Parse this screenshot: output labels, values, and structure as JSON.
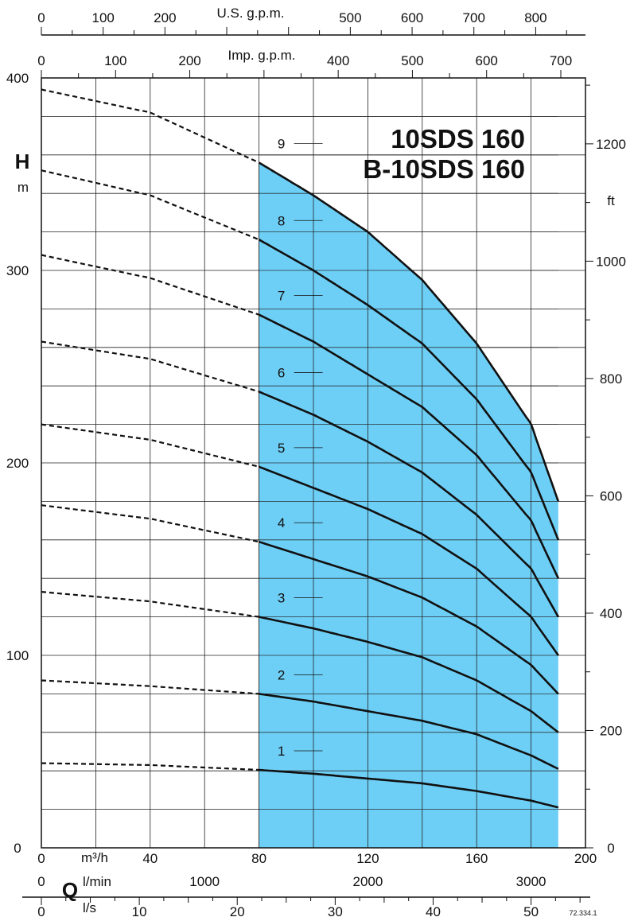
{
  "chart_data": {
    "type": "line",
    "title_lines": [
      "10SDS 160",
      "B-10SDS 160"
    ],
    "y_symbol": "H",
    "y_unit": "m",
    "y_right_unit": "ft",
    "x_symbol": "Q",
    "x_unit_m3h": "m³/h",
    "x_unit_lmin": "l/min",
    "x_unit_ls": "l/s",
    "top_axis_us_label": "U.S. g.p.m.",
    "top_axis_imp_label": "Imp. g.p.m.",
    "footnote": "72.334.1",
    "xlim": [
      0,
      200
    ],
    "ylim": [
      0,
      400
    ],
    "x_ticks": [
      "0",
      "40",
      "80",
      "120",
      "160",
      "200"
    ],
    "y_ticks": [
      "0",
      "100",
      "200",
      "300",
      "400"
    ],
    "y_right_ticks": [
      "0",
      "200",
      "400",
      "600",
      "800",
      "1000",
      "1200"
    ],
    "lmin_ticks": [
      "0",
      "1000",
      "2000",
      "3000"
    ],
    "ls_ticks": [
      "0",
      "10",
      "20",
      "30",
      "40",
      "50"
    ],
    "us_gpm_ticks": [
      "0",
      "100",
      "200",
      "500",
      "600",
      "700",
      "800"
    ],
    "imp_gpm_ticks": [
      "0",
      "100",
      "200",
      "400",
      "500",
      "600",
      "700"
    ],
    "operating_range": [
      80,
      190
    ],
    "fill_color": "#6ecff6",
    "series": [
      {
        "name": "1",
        "x": [
          0,
          40,
          80,
          100,
          120,
          140,
          160,
          180,
          190
        ],
        "y": [
          44,
          43,
          40.5,
          38.5,
          36,
          33.5,
          29.5,
          24.5,
          21
        ]
      },
      {
        "name": "2",
        "x": [
          0,
          40,
          80,
          100,
          120,
          140,
          160,
          180,
          190
        ],
        "y": [
          87,
          84,
          80,
          76,
          71,
          66,
          59,
          48,
          41
        ]
      },
      {
        "name": "3",
        "x": [
          0,
          40,
          80,
          100,
          120,
          140,
          160,
          180,
          190
        ],
        "y": [
          133,
          128,
          120,
          114,
          107,
          99,
          87,
          71,
          60
        ]
      },
      {
        "name": "4",
        "x": [
          0,
          40,
          80,
          100,
          120,
          140,
          160,
          180,
          190
        ],
        "y": [
          178,
          171,
          159,
          150,
          141,
          130,
          115,
          95,
          80
        ]
      },
      {
        "name": "5",
        "x": [
          0,
          40,
          80,
          100,
          120,
          140,
          160,
          180,
          190
        ],
        "y": [
          220,
          212,
          198,
          187,
          176,
          163,
          145,
          120,
          100
        ]
      },
      {
        "name": "6",
        "x": [
          0,
          40,
          80,
          100,
          120,
          140,
          160,
          180,
          190
        ],
        "y": [
          263,
          254,
          237,
          225,
          211,
          195,
          173,
          145,
          120
        ]
      },
      {
        "name": "7",
        "x": [
          0,
          40,
          80,
          100,
          120,
          140,
          160,
          180,
          190
        ],
        "y": [
          308,
          296,
          277,
          263,
          246,
          229,
          204,
          170,
          140
        ]
      },
      {
        "name": "8",
        "x": [
          0,
          40,
          80,
          100,
          120,
          140,
          160,
          180,
          190
        ],
        "y": [
          352,
          339,
          316,
          300,
          282,
          262,
          233,
          195,
          160
        ]
      },
      {
        "name": "9",
        "x": [
          0,
          40,
          80,
          100,
          120,
          140,
          160,
          180,
          190
        ],
        "y": [
          394,
          382,
          356,
          339,
          320,
          295,
          262,
          220,
          180
        ]
      }
    ]
  }
}
